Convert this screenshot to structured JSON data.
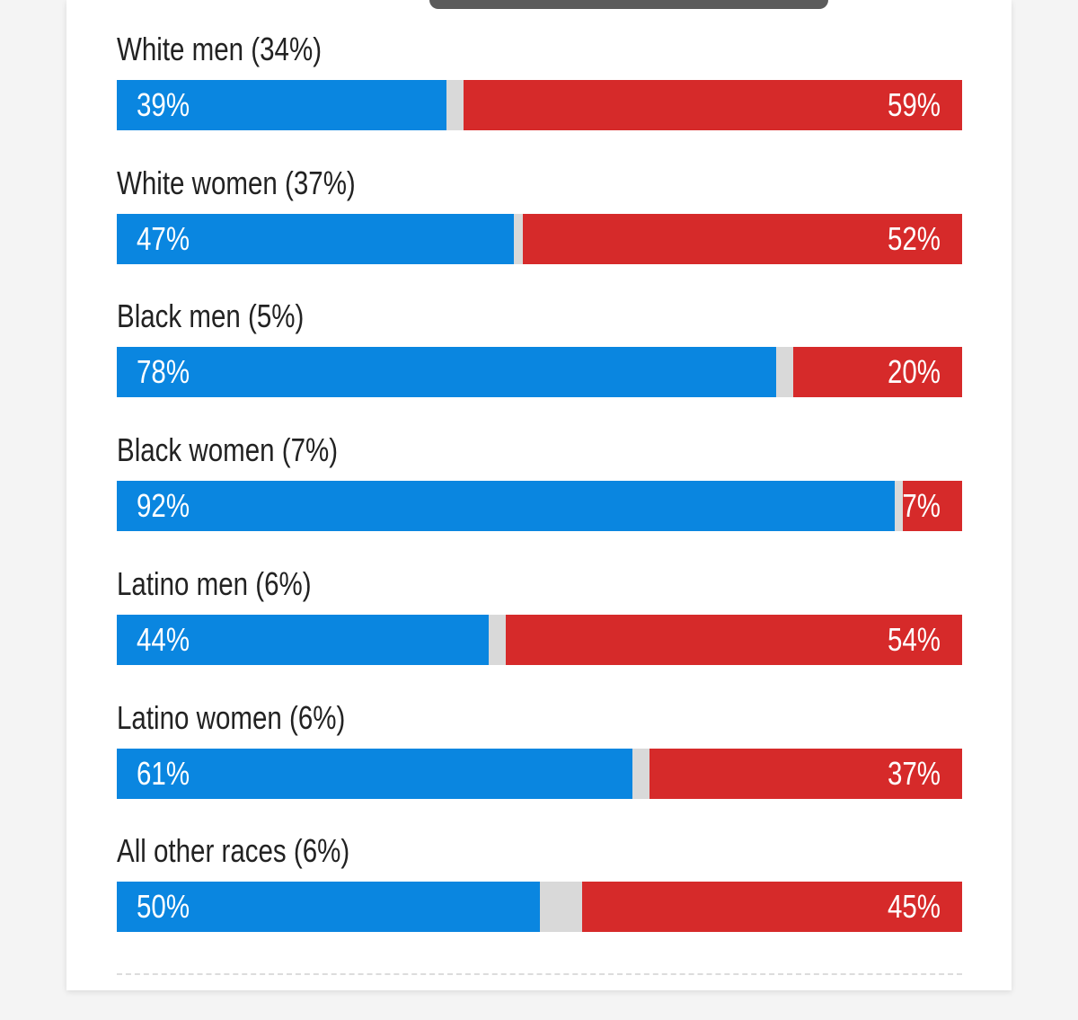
{
  "colors": {
    "dem": "#0a86e0",
    "rep": "#d62a2a",
    "other": "#d9d9d9"
  },
  "chart_data": {
    "type": "bar",
    "orientation": "horizontal-stacked",
    "categories": [
      "White men (34%)",
      "White women (37%)",
      "Black men (5%)",
      "Black women (7%)",
      "Latino men (6%)",
      "Latino women (6%)",
      "All other races (6%)"
    ],
    "series": [
      {
        "name": "blue",
        "values": [
          39,
          47,
          78,
          92,
          44,
          61,
          50
        ],
        "labels": [
          "39%",
          "47%",
          "78%",
          "92%",
          "44%",
          "61%",
          "50%"
        ]
      },
      {
        "name": "red",
        "values": [
          59,
          52,
          20,
          7,
          54,
          37,
          45
        ],
        "labels": [
          "59%",
          "52%",
          "20%",
          "7%",
          "54%",
          "37%",
          "45%"
        ]
      }
    ],
    "xlim": [
      0,
      100
    ],
    "grid": false,
    "legend": "none"
  }
}
